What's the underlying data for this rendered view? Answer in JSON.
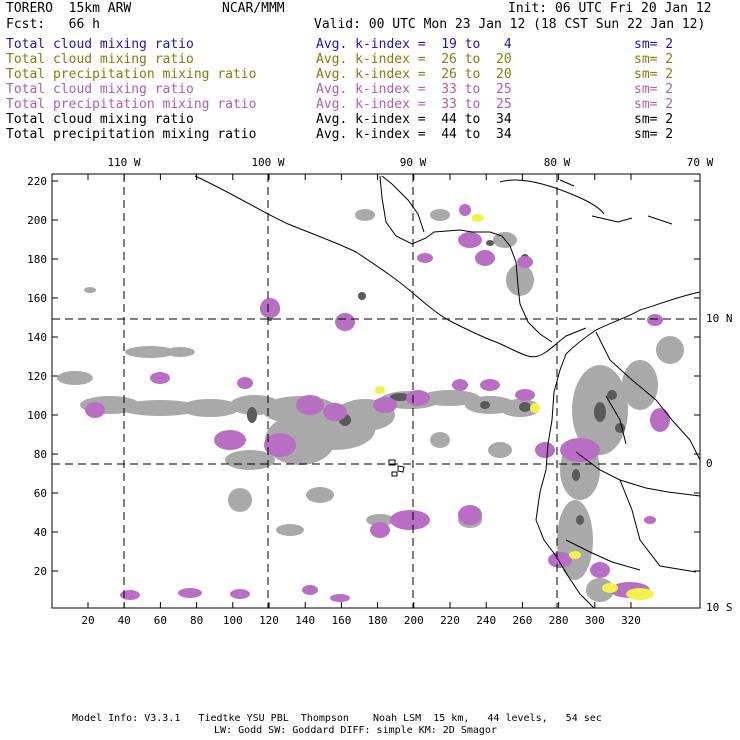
{
  "header": {
    "model": "TORERO  15km ARW",
    "center": "NCAR/MMM",
    "init": "Init: 06 UTC Fri 20 Jan 12",
    "fcst": "Fcst:   66 h",
    "valid": "Valid: 00 UTC Mon 23 Jan 12 (18 CST Sun 22 Jan 12)"
  },
  "legend": [
    {
      "field": "Total cloud mixing ratio",
      "range": "Avg. k-index =  19 to   4",
      "sm": "sm= 2",
      "color": "#1a1aa6"
    },
    {
      "field": "Total cloud mixing ratio",
      "range": "Avg. k-index =  26 to  20",
      "sm": "sm= 2",
      "color": "#8a7a10"
    },
    {
      "field": "Total precipitation mixing ratio",
      "range": "Avg. k-index =  26 to  20",
      "sm": "sm= 2",
      "color": "#8a7a10"
    },
    {
      "field": "Total cloud mixing ratio",
      "range": "Avg. k-index =  33 to  25",
      "sm": "sm= 2",
      "color": "#b55ab5"
    },
    {
      "field": "Total precipitation mixing ratio",
      "range": "Avg. k-index =  33 to  25",
      "sm": "sm= 2",
      "color": "#b55ab5"
    },
    {
      "field": "Total cloud mixing ratio",
      "range": "Avg. k-index =  44 to  34",
      "sm": "sm= 2",
      "color": "#000000"
    },
    {
      "field": "Total precipitation mixing ratio",
      "range": "Avg. k-index =  44 to  34",
      "sm": "sm= 2",
      "color": "#000000"
    }
  ],
  "map": {
    "top_labels": [
      "110 W",
      "100 W",
      "90 W",
      "80 W",
      "70 W"
    ],
    "right_labels": [
      "10 N",
      "0",
      "10 S"
    ],
    "y_ticks": [
      "220",
      "200",
      "180",
      "160",
      "140",
      "120",
      "100",
      "80",
      "60",
      "40",
      "20"
    ],
    "x_ticks": [
      "20",
      "40",
      "60",
      "80",
      "100",
      "120",
      "140",
      "160",
      "180",
      "200",
      "220",
      "240",
      "260",
      "280",
      "300",
      "320"
    ],
    "colors": {
      "gray": "#a9a9a9",
      "dark": "#5a5a5a",
      "purple": "#b86ec3",
      "yellow": "#f2f24a",
      "land": "#000000",
      "grid": "#000000"
    }
  },
  "footer": {
    "line1": "Model Info: V3.3.1   Tiedtke YSU PBL  Thompson    Noah LSM  15 km,   44 levels,   54 sec",
    "line2": "LW: Godd SW: Goddard DIFF: simple KM: 2D Smagor"
  }
}
